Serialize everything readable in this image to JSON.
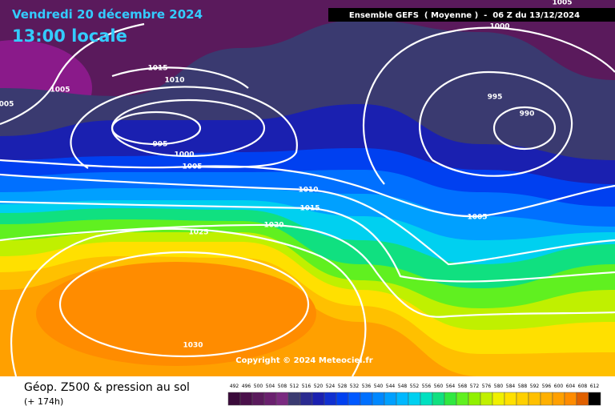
{
  "header": {
    "date": "Vendredi 20 décembre 2024",
    "time": "13:00 locale",
    "model": "Ensemble GEFS  ( Moyenne )  -  06 Z du 13/12/2024"
  },
  "map": {
    "isobar_labels": [
      "1005",
      "1000",
      "1015",
      "1010",
      "1005",
      "005",
      "995",
      "1000",
      "1005",
      "995",
      "990",
      "1010",
      "1015",
      "1020",
      "1025",
      "1005",
      "1030"
    ],
    "copyright": "Copyright © 2024 Meteociel.fr"
  },
  "footer": {
    "title": "Géop. Z500 & pression au sol",
    "lead": "(+ 174h)",
    "scale": [
      492,
      496,
      500,
      504,
      508,
      512,
      516,
      520,
      524,
      528,
      532,
      536,
      540,
      544,
      548,
      552,
      556,
      560,
      564,
      568,
      572,
      576,
      580,
      584,
      588,
      592,
      596,
      600,
      604,
      608,
      612
    ]
  }
}
